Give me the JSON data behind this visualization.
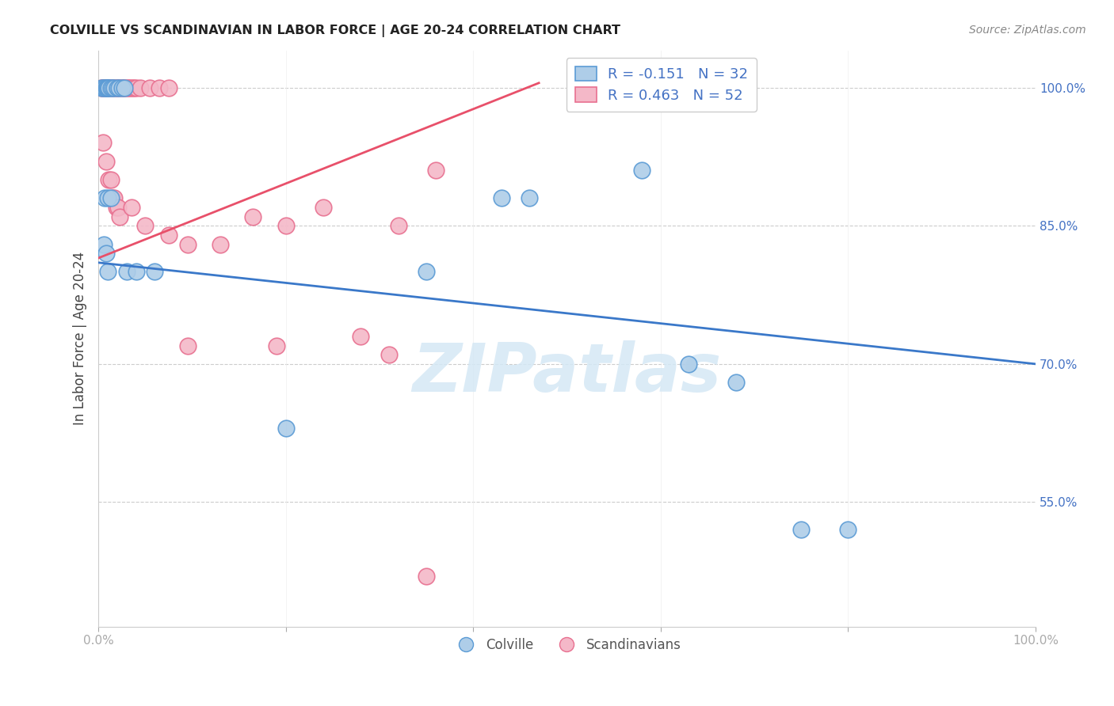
{
  "title": "COLVILLE VS SCANDINAVIAN IN LABOR FORCE | AGE 20-24 CORRELATION CHART",
  "source": "Source: ZipAtlas.com",
  "ylabel": "In Labor Force | Age 20-24",
  "ytick_labels": [
    "100.0%",
    "85.0%",
    "70.0%",
    "55.0%"
  ],
  "ytick_values": [
    1.0,
    0.85,
    0.7,
    0.55
  ],
  "xlim": [
    0.0,
    1.0
  ],
  "ylim": [
    0.415,
    1.04
  ],
  "watermark_text": "ZIPatlas",
  "colville_R": -0.151,
  "colville_N": 32,
  "scandinavian_R": 0.463,
  "scandinavian_N": 52,
  "colville_color": "#aecde8",
  "colville_edge_color": "#5b9bd5",
  "scandinavian_color": "#f4b8c8",
  "scandinavian_edge_color": "#e87090",
  "colville_line_color": "#3a78c9",
  "scandinavian_line_color": "#e8506a",
  "colville_x": [
    0.003,
    0.005,
    0.007,
    0.008,
    0.009,
    0.01,
    0.011,
    0.013,
    0.015,
    0.017,
    0.02,
    0.022,
    0.025,
    0.028,
    0.007,
    0.01,
    0.013,
    0.006,
    0.008,
    0.01,
    0.03,
    0.04,
    0.06,
    0.2,
    0.35,
    0.43,
    0.46,
    0.58,
    0.63,
    0.68,
    0.75,
    0.8
  ],
  "colville_y": [
    1.0,
    1.0,
    1.0,
    1.0,
    1.0,
    1.0,
    1.0,
    1.0,
    1.0,
    1.0,
    1.0,
    1.0,
    1.0,
    1.0,
    0.88,
    0.88,
    0.88,
    0.83,
    0.82,
    0.8,
    0.8,
    0.8,
    0.8,
    0.63,
    0.8,
    0.88,
    0.88,
    0.91,
    0.7,
    0.68,
    0.52,
    0.52
  ],
  "scandinavian_x": [
    0.003,
    0.004,
    0.006,
    0.007,
    0.008,
    0.009,
    0.01,
    0.012,
    0.014,
    0.016,
    0.018,
    0.02,
    0.022,
    0.024,
    0.026,
    0.028,
    0.03,
    0.032,
    0.034,
    0.036,
    0.038,
    0.04,
    0.045,
    0.055,
    0.065,
    0.075,
    0.005,
    0.008,
    0.011,
    0.013,
    0.015,
    0.017,
    0.019,
    0.021,
    0.023,
    0.035,
    0.05,
    0.075,
    0.095,
    0.13,
    0.165,
    0.2,
    0.24,
    0.28,
    0.32,
    0.36,
    0.63,
    0.66,
    0.095,
    0.19,
    0.31,
    0.35
  ],
  "scandinavian_y": [
    1.0,
    1.0,
    1.0,
    1.0,
    1.0,
    1.0,
    1.0,
    1.0,
    1.0,
    1.0,
    1.0,
    1.0,
    1.0,
    1.0,
    1.0,
    1.0,
    1.0,
    1.0,
    1.0,
    1.0,
    1.0,
    1.0,
    1.0,
    1.0,
    1.0,
    1.0,
    0.94,
    0.92,
    0.9,
    0.9,
    0.88,
    0.88,
    0.87,
    0.87,
    0.86,
    0.87,
    0.85,
    0.84,
    0.83,
    0.83,
    0.86,
    0.85,
    0.87,
    0.73,
    0.85,
    0.91,
    1.0,
    1.0,
    0.72,
    0.72,
    0.71,
    0.47
  ],
  "colville_line_x": [
    0.0,
    1.0
  ],
  "colville_line_y": [
    0.81,
    0.7
  ],
  "scandinavian_line_x": [
    0.0,
    0.47
  ],
  "scandinavian_line_y": [
    0.815,
    1.005
  ]
}
